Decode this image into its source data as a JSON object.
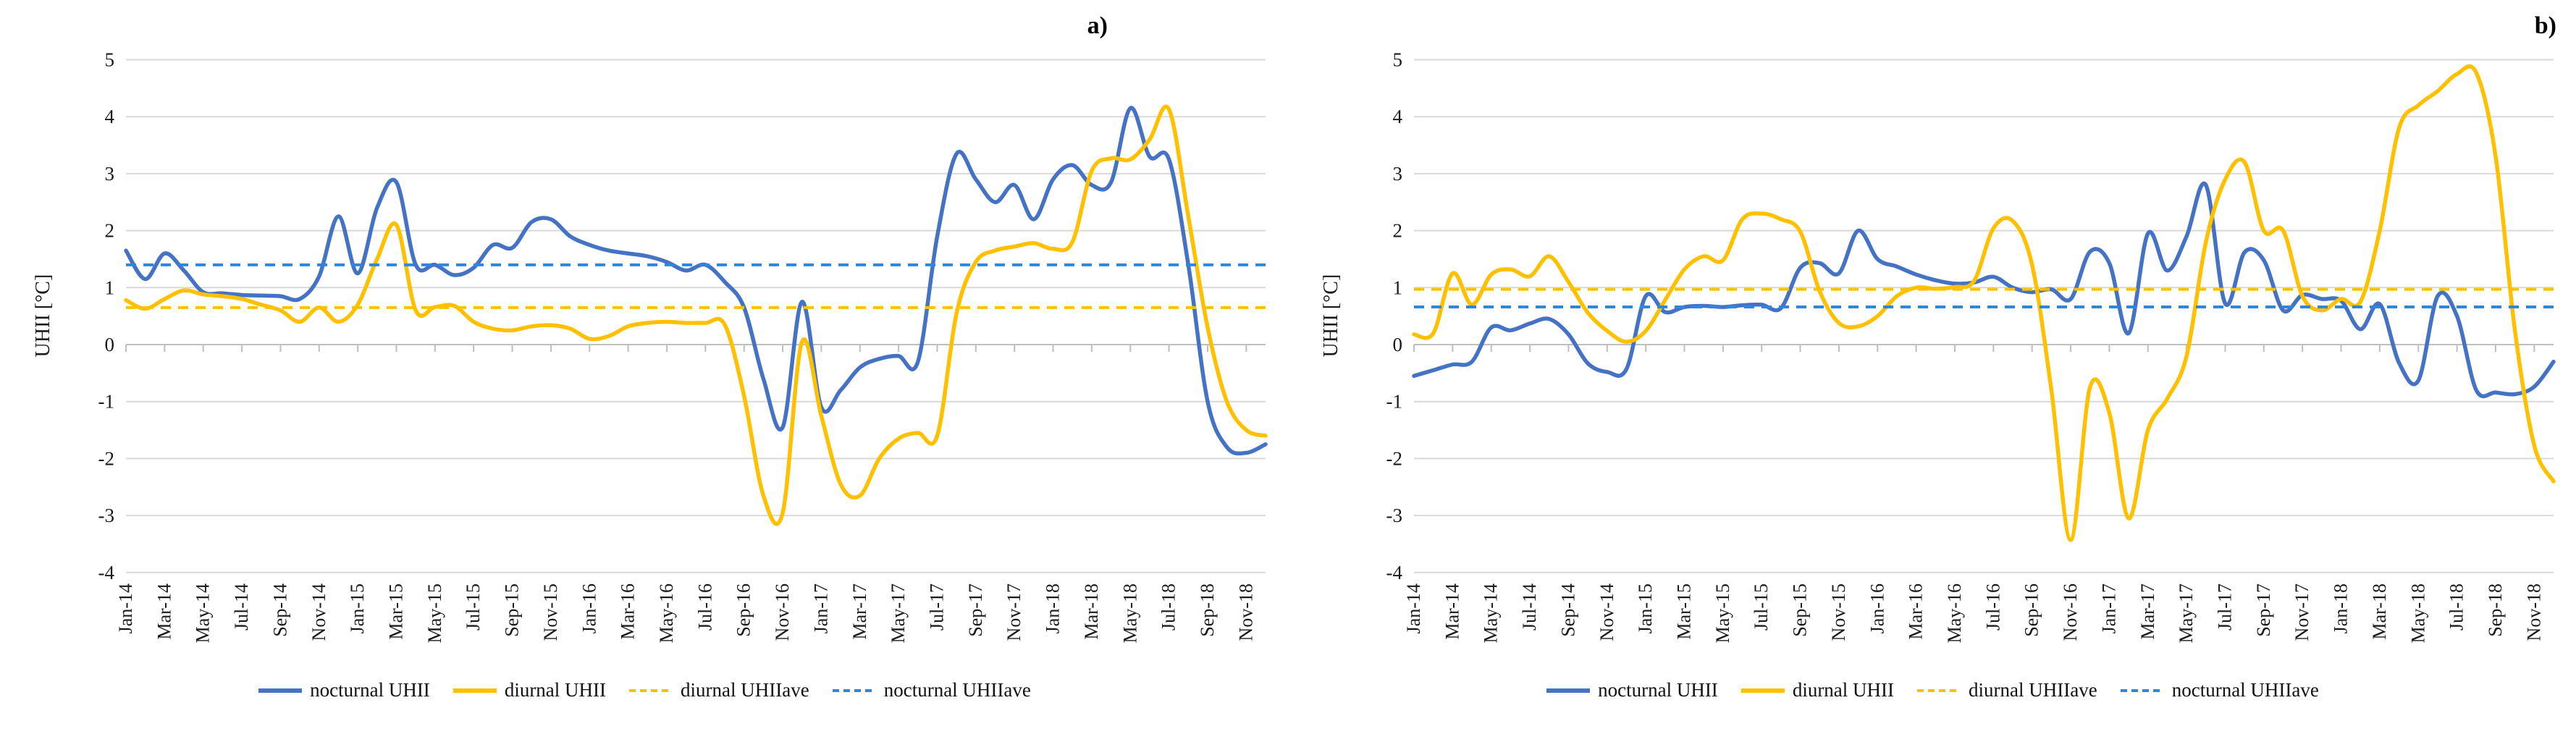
{
  "figure": {
    "background": "#ffffff",
    "panel_a_label": "a)",
    "panel_b_label": "b)",
    "y_axis_title": "UHII [°C]"
  },
  "colors": {
    "nocturnal": "#4472C4",
    "diurnal": "#FFC000",
    "nocturnal_ave": "#2E86DE",
    "diurnal_ave": "#FFC000",
    "gridline": "#D9D9D9",
    "axis": "#BFBFBF",
    "text": "#1a1a1a"
  },
  "legend": {
    "items": [
      {
        "label": "nocturnal UHII",
        "color": "#4472C4",
        "dash": "none"
      },
      {
        "label": "diurnal UHII",
        "color": "#FFC000",
        "dash": "none"
      },
      {
        "label": "diurnal UHIIave",
        "color": "#FFC000",
        "dash": "11 8"
      },
      {
        "label": "nocturnal UHIIave",
        "color": "#2E86DE",
        "dash": "11 8"
      }
    ]
  },
  "chart_data": [
    {
      "type": "line",
      "title": "a)",
      "xlabel": "",
      "ylabel": "UHII [°C]",
      "ylim": [
        -4,
        5
      ],
      "y_tick_step": 1,
      "grid": true,
      "legend_position": "bottom",
      "x_tick_labels": [
        "Jan-14",
        "Mar-14",
        "May-14",
        "Jul-14",
        "Sep-14",
        "Nov-14",
        "Jan-15",
        "Mar-15",
        "May-15",
        "Jul-15",
        "Sep-15",
        "Nov-15",
        "Jan-16",
        "Mar-16",
        "May-16",
        "Jul-16",
        "Sep-16",
        "Nov-16",
        "Jan-17",
        "Mar-17",
        "May-17",
        "Jul-17",
        "Sep-17",
        "Nov-17",
        "Jan-18",
        "Mar-18",
        "May-18",
        "Jul-18",
        "Sep-18",
        "Nov-18"
      ],
      "months": [
        "Jan-14",
        "Feb-14",
        "Mar-14",
        "Apr-14",
        "May-14",
        "Jun-14",
        "Jul-14",
        "Aug-14",
        "Sep-14",
        "Oct-14",
        "Nov-14",
        "Dec-14",
        "Jan-15",
        "Feb-15",
        "Mar-15",
        "Apr-15",
        "May-15",
        "Jun-15",
        "Jul-15",
        "Aug-15",
        "Sep-15",
        "Oct-15",
        "Nov-15",
        "Dec-15",
        "Jan-16",
        "Feb-16",
        "Mar-16",
        "Apr-16",
        "May-16",
        "Jun-16",
        "Jul-16",
        "Aug-16",
        "Sep-16",
        "Oct-16",
        "Nov-16",
        "Dec-16",
        "Jan-17",
        "Feb-17",
        "Mar-17",
        "Apr-17",
        "May-17",
        "Jun-17",
        "Jul-17",
        "Aug-17",
        "Sep-17",
        "Oct-17",
        "Nov-17",
        "Dec-17",
        "Jan-18",
        "Feb-18",
        "Mar-18",
        "Apr-18",
        "May-18",
        "Jun-18",
        "Jul-18",
        "Aug-18",
        "Sep-18",
        "Oct-18",
        "Nov-18",
        "Dec-18"
      ],
      "series": [
        {
          "name": "nocturnal UHII",
          "style": "solid",
          "color": "#4472C4",
          "values": [
            1.65,
            1.15,
            1.6,
            1.3,
            0.92,
            0.9,
            0.87,
            0.86,
            0.85,
            0.8,
            1.2,
            2.25,
            1.25,
            2.4,
            2.85,
            1.4,
            1.4,
            1.22,
            1.35,
            1.75,
            1.7,
            2.15,
            2.2,
            1.9,
            1.75,
            1.65,
            1.6,
            1.55,
            1.45,
            1.3,
            1.4,
            1.1,
            0.65,
            -0.6,
            -1.45,
            0.75,
            -1.1,
            -0.8,
            -0.4,
            -0.25,
            -0.2,
            -0.3,
            1.9,
            3.35,
            2.9,
            2.5,
            2.8,
            2.2,
            2.9,
            3.15,
            2.8,
            2.85,
            4.15,
            3.3,
            3.25,
            1.4,
            -1.0,
            -1.8,
            -1.9,
            -1.75
          ]
        },
        {
          "name": "diurnal UHII",
          "style": "solid",
          "color": "#FFC000",
          "values": [
            0.78,
            0.63,
            0.8,
            0.95,
            0.88,
            0.85,
            0.8,
            0.7,
            0.6,
            0.4,
            0.65,
            0.4,
            0.7,
            1.5,
            2.1,
            0.6,
            0.66,
            0.68,
            0.4,
            0.28,
            0.25,
            0.32,
            0.34,
            0.28,
            0.1,
            0.15,
            0.32,
            0.38,
            0.4,
            0.38,
            0.38,
            0.35,
            -0.9,
            -2.65,
            -2.95,
            0.05,
            -1.25,
            -2.45,
            -2.65,
            -2.0,
            -1.65,
            -1.55,
            -1.6,
            0.55,
            1.45,
            1.65,
            1.72,
            1.78,
            1.68,
            1.8,
            3.05,
            3.27,
            3.25,
            3.6,
            4.13,
            2.25,
            0.3,
            -1.0,
            -1.5,
            -1.6
          ]
        },
        {
          "name": "diurnal UHIIave",
          "style": "dashed",
          "color": "#FFC000",
          "constant": 0.65
        },
        {
          "name": "nocturnal UHIIave",
          "style": "dashed",
          "color": "#2E86DE",
          "constant": 1.4
        }
      ]
    },
    {
      "type": "line",
      "title": "b)",
      "xlabel": "",
      "ylabel": "UHII [°C]",
      "ylim": [
        -4,
        5
      ],
      "y_tick_step": 1,
      "grid": true,
      "legend_position": "bottom",
      "x_tick_labels": [
        "Jan-14",
        "Mar-14",
        "May-14",
        "Jul-14",
        "Sep-14",
        "Nov-14",
        "Jan-15",
        "Mar-15",
        "May-15",
        "Jul-15",
        "Sep-15",
        "Nov-15",
        "Jan-16",
        "Mar-16",
        "May-16",
        "Jul-16",
        "Sep-16",
        "Nov-16",
        "Jan-17",
        "Mar-17",
        "May-17",
        "Jul-17",
        "Sep-17",
        "Nov-17",
        "Jan-18",
        "Mar-18",
        "May-18",
        "Jul-18",
        "Sep-18",
        "Nov-18"
      ],
      "months": [
        "Jan-14",
        "Feb-14",
        "Mar-14",
        "Apr-14",
        "May-14",
        "Jun-14",
        "Jul-14",
        "Aug-14",
        "Sep-14",
        "Oct-14",
        "Nov-14",
        "Dec-14",
        "Jan-15",
        "Feb-15",
        "Mar-15",
        "Apr-15",
        "May-15",
        "Jun-15",
        "Jul-15",
        "Aug-15",
        "Sep-15",
        "Oct-15",
        "Nov-15",
        "Dec-15",
        "Jan-16",
        "Feb-16",
        "Mar-16",
        "Apr-16",
        "May-16",
        "Jun-16",
        "Jul-16",
        "Aug-16",
        "Sep-16",
        "Oct-16",
        "Nov-16",
        "Dec-16",
        "Jan-17",
        "Feb-17",
        "Mar-17",
        "Apr-17",
        "May-17",
        "Jun-17",
        "Jul-17",
        "Aug-17",
        "Sep-17",
        "Oct-17",
        "Nov-17",
        "Dec-17",
        "Jan-18",
        "Feb-18",
        "Mar-18",
        "Apr-18",
        "May-18",
        "Jun-18",
        "Jul-18",
        "Aug-18",
        "Sep-18",
        "Oct-18",
        "Nov-18",
        "Dec-18"
      ],
      "series": [
        {
          "name": "nocturnal UHII",
          "style": "solid",
          "color": "#4472C4",
          "values": [
            -0.55,
            -0.45,
            -0.35,
            -0.3,
            0.3,
            0.25,
            0.37,
            0.45,
            0.18,
            -0.33,
            -0.48,
            -0.43,
            0.85,
            0.57,
            0.66,
            0.68,
            0.66,
            0.69,
            0.7,
            0.64,
            1.35,
            1.43,
            1.25,
            2.0,
            1.5,
            1.37,
            1.23,
            1.13,
            1.07,
            1.09,
            1.19,
            1.0,
            0.92,
            0.97,
            0.8,
            1.63,
            1.43,
            0.2,
            1.95,
            1.3,
            1.9,
            2.8,
            0.72,
            1.62,
            1.48,
            0.6,
            0.87,
            0.8,
            0.77,
            0.27,
            0.71,
            -0.32,
            -0.63,
            0.85,
            0.5,
            -0.8,
            -0.84,
            -0.87,
            -0.74,
            -0.3
          ]
        },
        {
          "name": "diurnal UHII",
          "style": "solid",
          "color": "#FFC000",
          "values": [
            0.18,
            0.2,
            1.25,
            0.7,
            1.23,
            1.32,
            1.2,
            1.55,
            1.1,
            0.56,
            0.24,
            0.05,
            0.24,
            0.78,
            1.32,
            1.55,
            1.48,
            2.2,
            2.3,
            2.2,
            1.98,
            0.94,
            0.38,
            0.32,
            0.5,
            0.85,
            1.0,
            0.98,
            1.01,
            1.12,
            2.04,
            2.17,
            1.4,
            -0.8,
            -3.43,
            -0.75,
            -1.2,
            -3.05,
            -1.5,
            -0.95,
            -0.2,
            1.8,
            2.9,
            3.2,
            2.0,
            2.0,
            0.85,
            0.6,
            0.8,
            0.75,
            2.0,
            3.8,
            4.2,
            4.45,
            4.75,
            4.77,
            3.3,
            0.25,
            -1.77,
            -2.4
          ]
        },
        {
          "name": "diurnal UHIIave",
          "style": "dashed",
          "color": "#FFC000",
          "constant": 0.97
        },
        {
          "name": "nocturnal UHIIave",
          "style": "dashed",
          "color": "#2E86DE",
          "constant": 0.66
        }
      ]
    }
  ]
}
